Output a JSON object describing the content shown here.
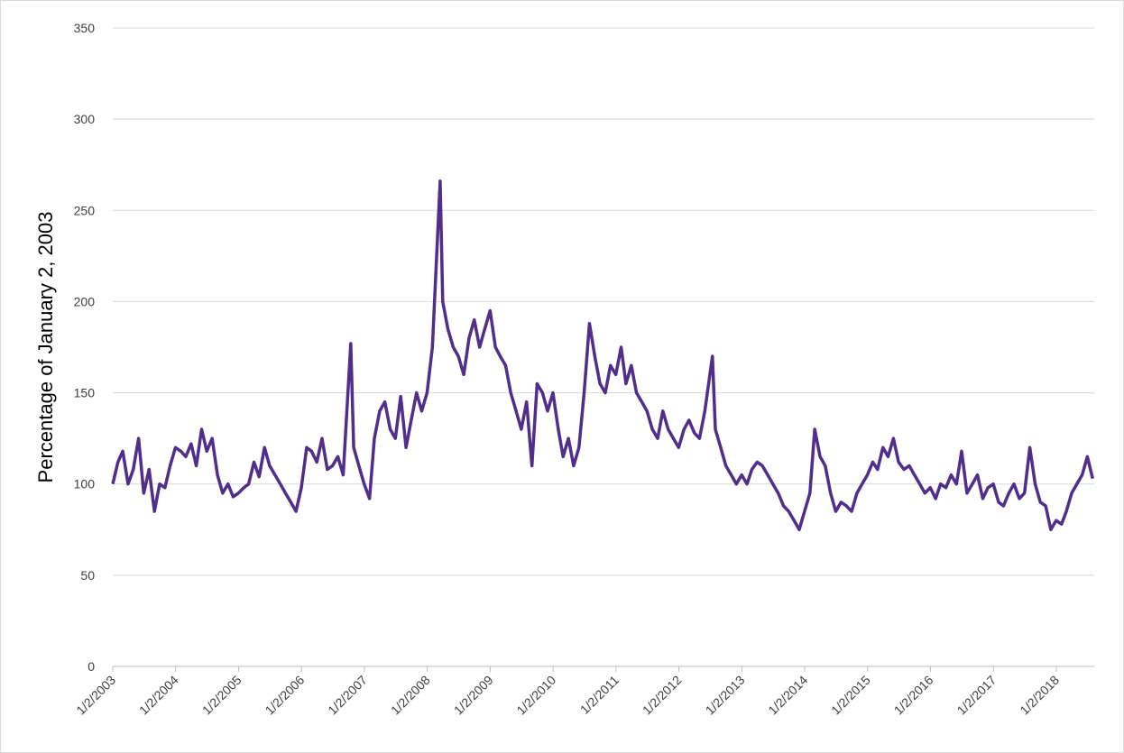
{
  "chart_data": {
    "type": "line",
    "y_label": "Percentage of January 2, 2003",
    "x": [
      "1/2/2003",
      "2/1/2003",
      "3/1/2003",
      "4/1/2003",
      "5/1/2003",
      "6/1/2003",
      "7/1/2003",
      "8/1/2003",
      "9/1/2003",
      "10/1/2003",
      "11/1/2003",
      "12/1/2003",
      "1/1/2004",
      "2/1/2004",
      "3/1/2004",
      "4/1/2004",
      "5/1/2004",
      "6/1/2004",
      "7/1/2004",
      "8/1/2004",
      "9/1/2004",
      "10/1/2004",
      "11/1/2004",
      "12/1/2004",
      "1/1/2005",
      "2/1/2005",
      "3/1/2005",
      "4/1/2005",
      "5/1/2005",
      "6/1/2005",
      "7/1/2005",
      "8/1/2005",
      "9/1/2005",
      "10/1/2005",
      "11/1/2005",
      "12/1/2005",
      "1/1/2006",
      "2/1/2006",
      "3/1/2006",
      "4/1/2006",
      "5/1/2006",
      "6/1/2006",
      "7/1/2006",
      "8/1/2006",
      "9/1/2006",
      "10/15/2006",
      "11/1/2006",
      "12/1/2006",
      "1/1/2007",
      "2/1/2007",
      "3/1/2007",
      "4/1/2007",
      "5/1/2007",
      "6/1/2007",
      "7/1/2007",
      "8/1/2007",
      "9/1/2007",
      "10/1/2007",
      "11/1/2007",
      "12/1/2007",
      "1/1/2008",
      "2/1/2008",
      "3/17/2008",
      "4/1/2008",
      "5/1/2008",
      "6/1/2008",
      "7/1/2008",
      "8/1/2008",
      "9/1/2008",
      "10/1/2008",
      "11/1/2008",
      "12/1/2008",
      "1/1/2009",
      "2/1/2009",
      "3/1/2009",
      "4/1/2009",
      "5/1/2009",
      "6/1/2009",
      "7/1/2009",
      "8/1/2009",
      "9/1/2009",
      "10/1/2009",
      "11/1/2009",
      "12/1/2009",
      "1/1/2010",
      "2/1/2010",
      "3/1/2010",
      "4/1/2010",
      "5/1/2010",
      "6/1/2010",
      "7/1/2010",
      "8/1/2010",
      "9/1/2010",
      "10/1/2010",
      "11/1/2010",
      "12/1/2010",
      "1/1/2011",
      "2/1/2011",
      "3/1/2011",
      "4/1/2011",
      "5/1/2011",
      "6/1/2011",
      "7/1/2011",
      "8/1/2011",
      "9/1/2011",
      "10/1/2011",
      "11/1/2011",
      "12/1/2011",
      "1/1/2012",
      "2/1/2012",
      "3/1/2012",
      "4/1/2012",
      "5/1/2012",
      "6/1/2012",
      "7/15/2012",
      "8/1/2012",
      "9/1/2012",
      "10/1/2012",
      "11/1/2012",
      "12/1/2012",
      "1/1/2013",
      "2/1/2013",
      "3/1/2013",
      "4/1/2013",
      "5/1/2013",
      "6/1/2013",
      "7/1/2013",
      "8/1/2013",
      "9/1/2013",
      "10/1/2013",
      "11/1/2013",
      "12/1/2013",
      "1/1/2014",
      "2/1/2014",
      "3/1/2014",
      "4/1/2014",
      "5/1/2014",
      "6/1/2014",
      "7/1/2014",
      "8/1/2014",
      "9/1/2014",
      "10/1/2014",
      "11/1/2014",
      "12/1/2014",
      "1/1/2015",
      "2/1/2015",
      "3/1/2015",
      "4/1/2015",
      "5/1/2015",
      "6/1/2015",
      "7/1/2015",
      "8/1/2015",
      "9/1/2015",
      "10/1/2015",
      "11/1/2015",
      "12/1/2015",
      "1/1/2016",
      "2/1/2016",
      "3/1/2016",
      "4/1/2016",
      "5/1/2016",
      "6/1/2016",
      "7/1/2016",
      "8/1/2016",
      "9/1/2016",
      "10/1/2016",
      "11/1/2016",
      "12/1/2016",
      "1/1/2017",
      "2/1/2017",
      "3/1/2017",
      "4/1/2017",
      "5/1/2017",
      "6/1/2017",
      "7/1/2017",
      "8/1/2017",
      "9/1/2017",
      "10/1/2017",
      "11/1/2017",
      "12/1/2017",
      "1/1/2018",
      "2/1/2018",
      "3/1/2018",
      "4/1/2018",
      "5/1/2018",
      "6/1/2018",
      "7/1/2018",
      "8/1/2018"
    ],
    "series": [
      {
        "color": "#512d8c",
        "values": [
          100,
          112,
          118,
          100,
          108,
          125,
          95,
          108,
          85,
          100,
          98,
          110,
          120,
          118,
          115,
          122,
          110,
          130,
          118,
          125,
          105,
          95,
          100,
          93,
          95,
          98,
          100,
          112,
          104,
          120,
          110,
          105,
          100,
          95,
          90,
          85,
          98,
          120,
          118,
          112,
          125,
          108,
          110,
          115,
          105,
          177,
          120,
          110,
          100,
          92,
          125,
          140,
          145,
          130,
          125,
          148,
          120,
          135,
          150,
          140,
          150,
          175,
          266,
          200,
          185,
          175,
          170,
          160,
          180,
          190,
          175,
          185,
          195,
          175,
          170,
          165,
          150,
          140,
          130,
          145,
          110,
          155,
          150,
          140,
          150,
          130,
          115,
          125,
          110,
          120,
          150,
          188,
          170,
          155,
          150,
          165,
          160,
          175,
          155,
          165,
          150,
          145,
          140,
          130,
          125,
          140,
          130,
          125,
          120,
          130,
          135,
          128,
          125,
          140,
          170,
          130,
          120,
          110,
          105,
          100,
          105,
          100,
          108,
          112,
          110,
          105,
          100,
          95,
          88,
          85,
          80,
          75,
          85,
          95,
          130,
          115,
          110,
          95,
          85,
          90,
          88,
          85,
          95,
          100,
          105,
          112,
          108,
          120,
          115,
          125,
          112,
          108,
          110,
          105,
          100,
          95,
          98,
          92,
          100,
          98,
          105,
          100,
          118,
          95,
          100,
          105,
          92,
          98,
          100,
          90,
          88,
          95,
          100,
          92,
          95,
          120,
          100,
          90,
          88,
          75,
          80,
          78,
          85,
          95,
          100,
          105,
          115,
          103
        ]
      }
    ],
    "xlim": [
      "1/2/2003",
      "8/10/2018"
    ],
    "xticks": [
      "1/2/2003",
      "1/2/2004",
      "1/2/2005",
      "1/2/2006",
      "1/2/2007",
      "1/2/2008",
      "1/2/2009",
      "1/2/2010",
      "1/2/2011",
      "1/2/2012",
      "1/2/2013",
      "1/2/2014",
      "1/2/2015",
      "1/2/2016",
      "1/2/2017",
      "1/2/2018"
    ],
    "ylim": [
      0,
      350
    ],
    "yticks": [
      0,
      50,
      100,
      150,
      200,
      250,
      300,
      350
    ],
    "grid": true
  }
}
